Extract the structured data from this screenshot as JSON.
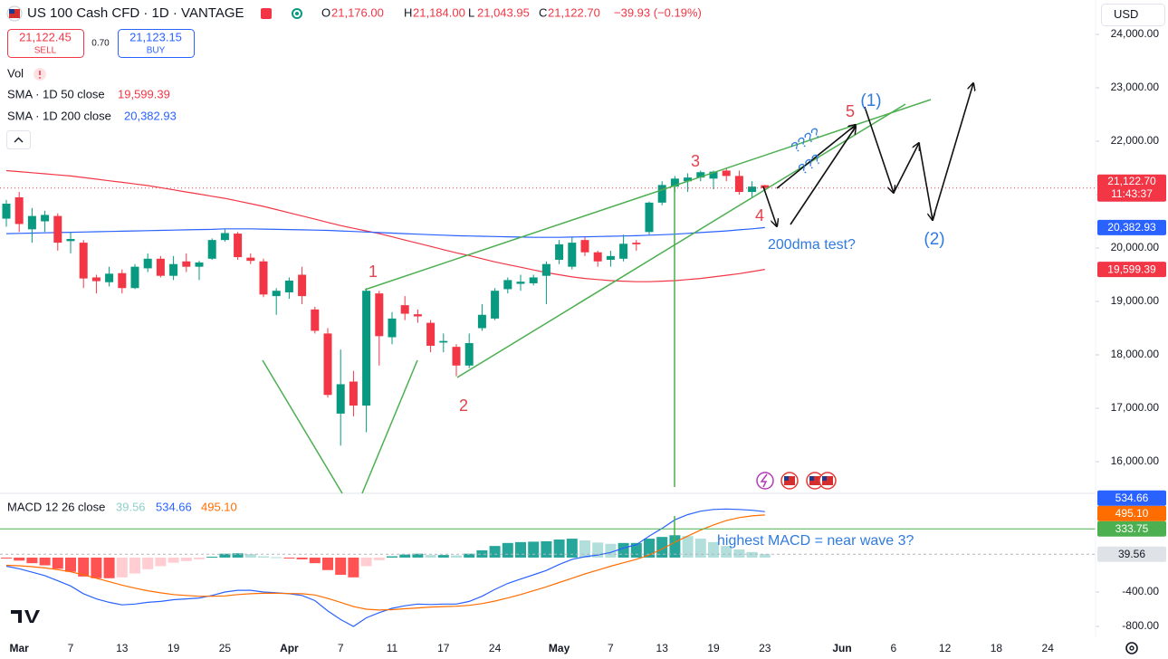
{
  "header": {
    "title": "US 100 Cash CFD · 1D · VANTAGE",
    "ohlc": [
      {
        "key": "O",
        "value": "21,176.00"
      },
      {
        "key": "H",
        "value": "21,184.00"
      },
      {
        "key": "L",
        "value": "21,043.95"
      },
      {
        "key": "C",
        "value": "21,122.70"
      }
    ],
    "change": "−39.93 (−0.19%)",
    "sell": {
      "price": "21,122.45",
      "label": "SELL"
    },
    "spread": "0.70",
    "buy": {
      "price": "21,123.15",
      "label": "BUY"
    },
    "volume": "Vol",
    "currency": "USD"
  },
  "annotations": {
    "waves": [
      "1",
      "2",
      "3",
      "4",
      "5"
    ],
    "degree": [
      "(1)",
      "(2)"
    ],
    "notes": [
      "200dma test?",
      "????",
      "???",
      "highest MACD = near wave 3?"
    ]
  },
  "chart_data": [
    {
      "type": "candlestick",
      "categories": [
        null,
        "Mar",
        null,
        null,
        null,
        "7",
        null,
        null,
        null,
        "13",
        null,
        null,
        null,
        "19",
        null,
        null,
        null,
        "25",
        null,
        null,
        null,
        null,
        "Apr",
        null,
        null,
        null,
        "7",
        null,
        null,
        null,
        "11",
        null,
        null,
        null,
        "17",
        null,
        null,
        null,
        "24",
        null,
        null,
        null,
        null,
        "May",
        null,
        null,
        null,
        "7",
        null,
        null,
        null,
        "13",
        null,
        null,
        null,
        "19",
        null,
        null,
        null,
        "23",
        null,
        null,
        null,
        null,
        null,
        "Jun",
        null,
        null,
        null,
        "6",
        null,
        null,
        null,
        "12",
        null,
        null,
        null,
        "18",
        null,
        null,
        null,
        "24"
      ],
      "open": [
        20550,
        20950,
        20350,
        20500,
        20600,
        20130,
        20100,
        19450,
        19360,
        19530,
        19250,
        19620,
        19800,
        19480,
        19750,
        19650,
        19800,
        20150,
        20270,
        19820,
        19750,
        19100,
        19170,
        19500,
        18850,
        18400,
        16900,
        17500,
        17050,
        19150,
        18330,
        18930,
        18760,
        18600,
        18230,
        18150,
        17800,
        18500,
        18680,
        19230,
        19330,
        19340,
        19480,
        19780,
        19650,
        20150,
        19920,
        19780,
        19800,
        20100,
        20300,
        20850,
        21150,
        21250,
        21320,
        21300,
        21450,
        21350,
        21050,
        21176,
        null,
        null,
        null,
        null,
        null,
        null,
        null,
        null,
        null,
        null,
        null,
        null,
        null,
        null,
        null,
        null,
        null,
        null,
        null,
        null,
        null,
        null
      ],
      "high": [
        20900,
        21050,
        20750,
        20700,
        20650,
        20300,
        20150,
        19500,
        19650,
        19600,
        19700,
        19900,
        19850,
        19850,
        19900,
        19760,
        20180,
        20350,
        20300,
        19900,
        19800,
        19250,
        19450,
        19650,
        18900,
        18500,
        18100,
        17700,
        19250,
        19200,
        18800,
        19100,
        18850,
        18650,
        18400,
        18200,
        18400,
        18950,
        19250,
        19450,
        19500,
        19500,
        19750,
        20150,
        20200,
        20200,
        19950,
        19950,
        20250,
        20150,
        20870,
        21250,
        21350,
        21400,
        21450,
        21450,
        21500,
        21450,
        21250,
        21184,
        null,
        null,
        null,
        null,
        null,
        null,
        null,
        null,
        null,
        null,
        null,
        null,
        null,
        null,
        null,
        null,
        null,
        null,
        null,
        null,
        null,
        null
      ],
      "low": [
        20400,
        20300,
        20100,
        20300,
        19950,
        19900,
        19250,
        19150,
        19280,
        19150,
        19230,
        19550,
        19450,
        19400,
        19550,
        19400,
        19780,
        20120,
        19780,
        19700,
        19080,
        18750,
        19050,
        18950,
        18400,
        17200,
        16300,
        16850,
        16550,
        17800,
        18200,
        18650,
        18600,
        18050,
        18050,
        17600,
        17750,
        18450,
        18650,
        19150,
        19200,
        19300,
        18950,
        19700,
        19600,
        19850,
        19650,
        19650,
        19750,
        19950,
        20250,
        20800,
        21050,
        21050,
        21250,
        21100,
        21250,
        21000,
        20950,
        21043.95,
        null,
        null,
        null,
        null,
        null,
        null,
        null,
        null,
        null,
        null,
        null,
        null,
        null,
        null,
        null,
        null,
        null,
        null,
        null,
        null,
        null,
        null
      ],
      "close": [
        20830,
        20450,
        20600,
        20620,
        20100,
        20170,
        19430,
        19380,
        19520,
        19250,
        19650,
        19800,
        19480,
        19700,
        19650,
        19730,
        20150,
        20280,
        19830,
        19760,
        19130,
        19200,
        19390,
        19100,
        18450,
        17250,
        17450,
        17050,
        19200,
        18350,
        18680,
        18770,
        18720,
        18170,
        18260,
        17800,
        18220,
        18750,
        19200,
        19400,
        19370,
        19450,
        19700,
        20070,
        20100,
        19920,
        19750,
        19850,
        20080,
        20070,
        20850,
        21180,
        21300,
        21320,
        21420,
        21430,
        21350,
        21050,
        21150,
        21122.7,
        null,
        null,
        null,
        null,
        null,
        null,
        null,
        null,
        null,
        null,
        null,
        null,
        null,
        null,
        null,
        null,
        null,
        null,
        null,
        null,
        null,
        null
      ],
      "up_color": "#089981",
      "down_color": "#f23645",
      "last_price_label": "21,122.70",
      "countdown": "11:43:37",
      "series": [
        {
          "name": "SMA · 1D 50 close",
          "color": "#f23645",
          "last_label": "19,599.39",
          "values": [
            21450,
            21430,
            21410,
            21390,
            21370,
            21350,
            21320,
            21290,
            21260,
            21230,
            21200,
            21170,
            21130,
            21090,
            21050,
            21010,
            20970,
            20930,
            20880,
            20830,
            20780,
            20720,
            20660,
            20600,
            20540,
            20480,
            20420,
            20370,
            20320,
            20270,
            20210,
            20150,
            20090,
            20030,
            19970,
            19910,
            19860,
            19800,
            19740,
            19690,
            19640,
            19590,
            19540,
            19500,
            19460,
            19430,
            19410,
            19390,
            19380,
            19370,
            19370,
            19380,
            19390,
            19410,
            19430,
            19460,
            19490,
            19520,
            19560,
            19599.39,
            null,
            null,
            null,
            null,
            null,
            null,
            null,
            null,
            null,
            null,
            null,
            null,
            null,
            null,
            null,
            null,
            null,
            null,
            null,
            null,
            null,
            null
          ]
        },
        {
          "name": "SMA · 1D 200 close",
          "color": "#2962ff",
          "last_label": "20,382.93",
          "values": [
            20270,
            20275,
            20280,
            20285,
            20290,
            20295,
            20300,
            20305,
            20310,
            20315,
            20320,
            20325,
            20330,
            20335,
            20340,
            20345,
            20350,
            20360,
            20360,
            20360,
            20355,
            20350,
            20345,
            20340,
            20335,
            20330,
            20320,
            20310,
            20300,
            20290,
            20280,
            20270,
            20260,
            20250,
            20240,
            20230,
            20225,
            20220,
            20215,
            20210,
            20205,
            20200,
            20200,
            20200,
            20205,
            20210,
            20215,
            20220,
            20225,
            20230,
            20240,
            20250,
            20260,
            20275,
            20290,
            20305,
            20320,
            20340,
            20360,
            20382.93,
            null,
            null,
            null,
            null,
            null,
            null,
            null,
            null,
            null,
            null,
            null,
            null,
            null,
            null,
            null,
            null,
            null,
            null,
            null,
            null,
            null,
            null
          ]
        }
      ],
      "ylim": [
        15407,
        24644
      ],
      "yticks": [
        {
          "value": 16000,
          "label": "16,000.00"
        },
        {
          "value": 17000,
          "label": "17,000.00"
        },
        {
          "value": 18000,
          "label": "18,000.00"
        },
        {
          "value": 19000,
          "label": "19,000.00"
        },
        {
          "value": 20000,
          "label": "20,000.00"
        },
        {
          "value": 21000,
          "label": "21,000.00"
        },
        {
          "value": 22000,
          "label": "22,000.00"
        },
        {
          "value": 23000,
          "label": "23,000.00"
        },
        {
          "value": 24000,
          "label": "24,000.00"
        }
      ],
      "grid": false
    },
    {
      "type": "macd",
      "title": "MACD 12 26 close",
      "histogram": {
        "last_label": "39.56",
        "colors": [
          "#26a69a",
          "#b2dfdb",
          "#ff5252",
          "#ffcdd2"
        ],
        "values": [
          -10,
          -35,
          -65,
          -90,
          -130,
          -165,
          -220,
          -240,
          -240,
          -230,
          -185,
          -135,
          -100,
          -60,
          -40,
          -20,
          10,
          45,
          50,
          40,
          15,
          5,
          -2,
          -20,
          -65,
          -145,
          -200,
          -230,
          -100,
          -30,
          15,
          35,
          45,
          30,
          30,
          25,
          45,
          85,
          135,
          170,
          180,
          185,
          190,
          210,
          220,
          200,
          175,
          160,
          170,
          170,
          220,
          240,
          260,
          250,
          220,
          180,
          135,
          95,
          65,
          39.56
        ]
      },
      "macd": {
        "color": "#2962ff",
        "last_label": "534.66",
        "values": [
          -100,
          -130,
          -170,
          -210,
          -270,
          -330,
          -420,
          -480,
          -520,
          -550,
          -540,
          -520,
          -510,
          -490,
          -480,
          -470,
          -440,
          -400,
          -380,
          -380,
          -400,
          -410,
          -420,
          -440,
          -500,
          -620,
          -720,
          -800,
          -700,
          -640,
          -590,
          -560,
          -540,
          -545,
          -540,
          -540,
          -510,
          -450,
          -370,
          -300,
          -250,
          -200,
          -150,
          -80,
          -20,
          10,
          30,
          60,
          110,
          150,
          250,
          340,
          440,
          500,
          540,
          560,
          565,
          560,
          550,
          534.66
        ]
      },
      "signal": {
        "color": "#ff6d00",
        "last_label": "495.10",
        "values": [
          -90,
          -95,
          -105,
          -120,
          -140,
          -165,
          -200,
          -240,
          -280,
          -320,
          -355,
          -385,
          -410,
          -430,
          -440,
          -450,
          -450,
          -445,
          -430,
          -420,
          -415,
          -415,
          -418,
          -420,
          -435,
          -475,
          -520,
          -570,
          -600,
          -610,
          -605,
          -595,
          -585,
          -575,
          -570,
          -565,
          -555,
          -535,
          -505,
          -470,
          -430,
          -385,
          -340,
          -290,
          -240,
          -190,
          -145,
          -100,
          -60,
          -20,
          30,
          100,
          180,
          250,
          320,
          380,
          430,
          465,
          485,
          495.1
        ]
      },
      "level": {
        "value": 333.75,
        "label": "333.75",
        "color": "#4caf50"
      },
      "ylim": [
        -937,
        747
      ],
      "yticks": [
        {
          "value": -400,
          "label": "-400.00"
        },
        {
          "value": -800,
          "label": "-800.00"
        }
      ]
    }
  ]
}
